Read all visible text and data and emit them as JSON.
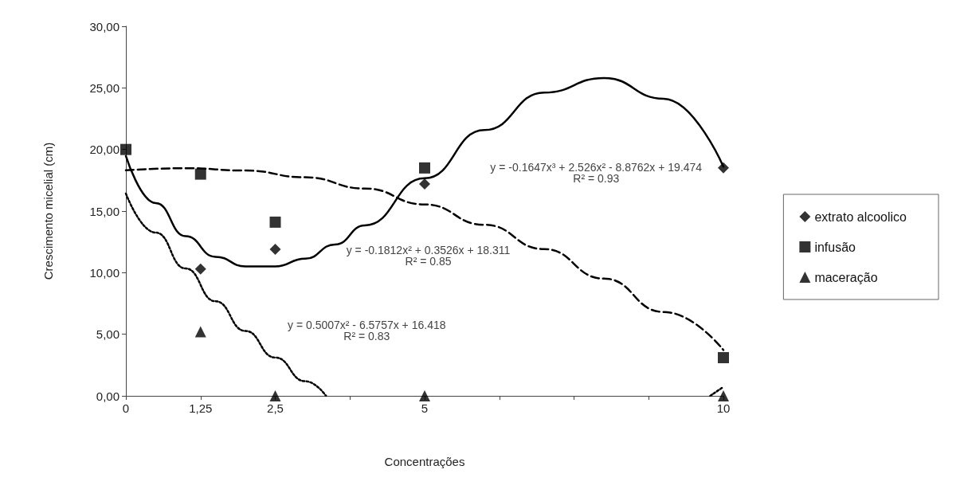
{
  "chart_data": {
    "type": "scatter",
    "xlabel": "Concentrações",
    "ylabel": "Crescimento micelial (cm)",
    "x": [
      0,
      1.25,
      2.5,
      5,
      10
    ],
    "xlim": [
      0,
      10
    ],
    "xticks": [
      0,
      {
        "value": 1.25,
        "label": "1,25"
      },
      {
        "value": 2.5,
        "label": "2,5"
      },
      {
        "value": 3.75,
        "label": null
      },
      5,
      {
        "value": 6.25,
        "label": null
      },
      {
        "value": 7.5,
        "label": null
      },
      {
        "value": 8.75,
        "label": null
      },
      10
    ],
    "ylim": [
      0,
      30
    ],
    "yticks": [
      {
        "value": 0,
        "label": "0,00"
      },
      {
        "value": 5,
        "label": "5,00"
      },
      {
        "value": 10,
        "label": "10,00"
      },
      {
        "value": 15,
        "label": "15,00"
      },
      {
        "value": 20,
        "label": "20,00"
      },
      {
        "value": 25,
        "label": "25,00"
      },
      {
        "value": 30,
        "label": "30,00"
      }
    ],
    "grid": false,
    "legend": "right",
    "series": [
      {
        "name": "extrato alcoolico",
        "marker": "diamond",
        "color": "#000000",
        "values": [
          null,
          10.3,
          11.9,
          17.2,
          18.5
        ]
      },
      {
        "name": "infusão",
        "marker": "square",
        "color": "#000000",
        "values": [
          20,
          18,
          14.1,
          18.5,
          3.1
        ]
      },
      {
        "name": "maceração",
        "marker": "triangle",
        "color": "#000000",
        "values": [
          null,
          5.2,
          0,
          0,
          0
        ]
      },
      {
        "type": "line",
        "line_style": "solid",
        "marker": "none",
        "color": "#000000",
        "x": [
          0,
          0.5,
          1,
          1.5,
          2,
          2.5,
          3,
          3.5,
          4,
          5,
          6,
          7,
          8,
          9,
          10
        ],
        "values": [
          19.47,
          15.65,
          12.96,
          11.29,
          10.51,
          10.5,
          11.13,
          12.29,
          13.84,
          17.66,
          21.58,
          24.62,
          25.8,
          24.12,
          18.6
        ]
      },
      {
        "type": "line",
        "line_style": "dashed",
        "marker": "none",
        "color": "#000000",
        "x": [
          0,
          1,
          2,
          3,
          4,
          5,
          6,
          7,
          8,
          9,
          10
        ],
        "values": [
          18.31,
          18.48,
          18.29,
          17.74,
          16.83,
          15.54,
          13.89,
          11.91,
          9.52,
          6.81,
          3.72
        ]
      },
      {
        "type": "line",
        "line_style": "dotted",
        "marker": "none",
        "color": "#000000",
        "x": [
          0,
          0.5,
          1,
          1.5,
          2,
          2.5,
          3,
          3.35,
          6,
          9.78,
          10
        ],
        "values": [
          16.42,
          13.25,
          10.34,
          7.68,
          5.27,
          3.11,
          1.19,
          0,
          null,
          0,
          0.73
        ]
      }
    ],
    "annotations": [
      "y = -0.1647x³ + 2.526x² - 8.8762x + 19.474\nR² = 0.93",
      "y = -0.1812x² + 0.3526x + 18.311\nR² = 0.85",
      "y = 0.5007x² - 6.5757x + 16.418\nR² = 0.83"
    ]
  }
}
